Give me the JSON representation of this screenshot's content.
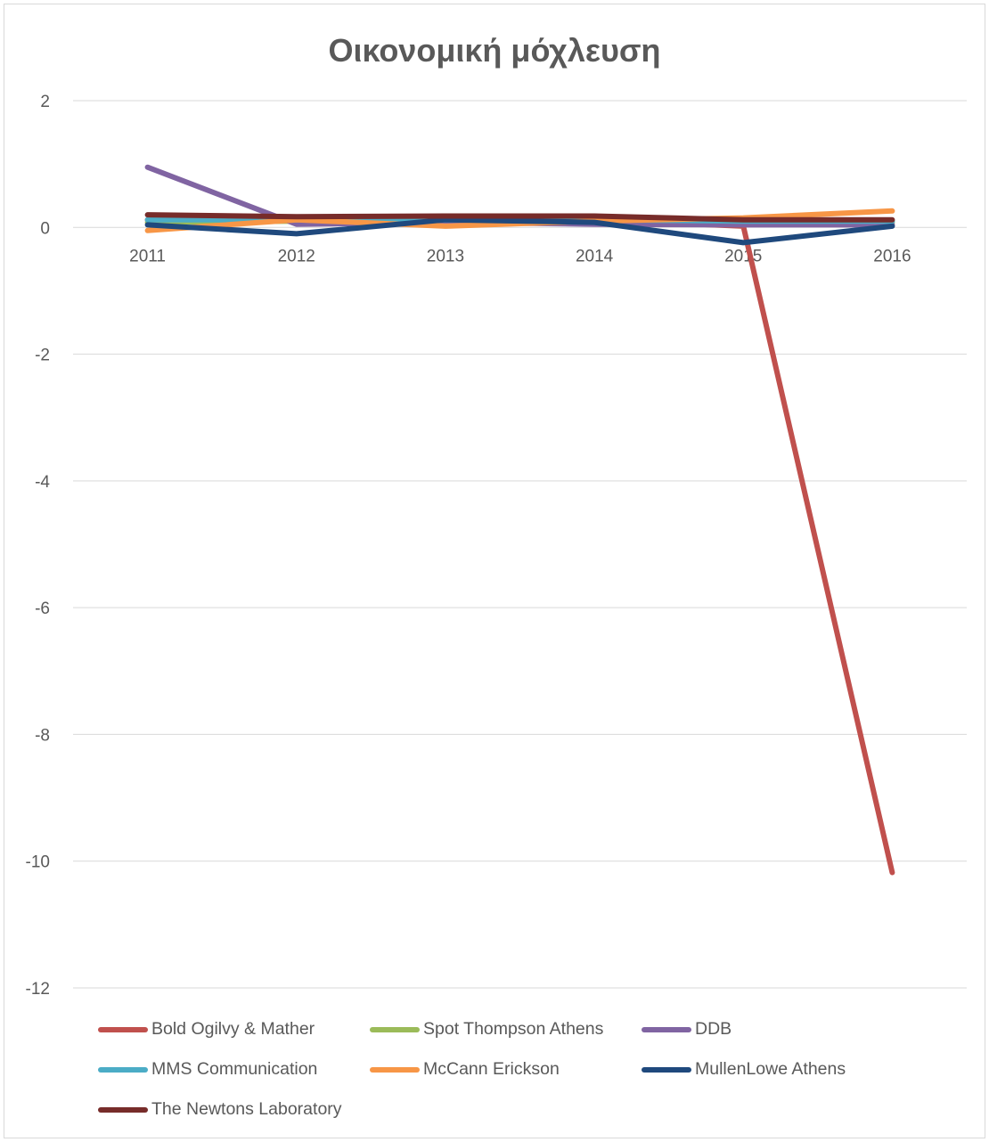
{
  "chart_data": {
    "type": "line",
    "title": "Οικονομική μόχλευση",
    "categories": [
      "2011",
      "2012",
      "2013",
      "2014",
      "2015",
      "2016"
    ],
    "y_ticks": [
      "2",
      "0",
      "-2",
      "-4",
      "-6",
      "-8",
      "-10",
      "-12"
    ],
    "ylim": [
      -12,
      2
    ],
    "grid": true,
    "legend_position": "bottom",
    "series": [
      {
        "name": "Bold Ogilvy & Mather",
        "color": "#c0504d",
        "values": [
          0.12,
          0.12,
          0.12,
          0.12,
          0.02,
          -10.18
        ]
      },
      {
        "name": "Spot Thompson Athens",
        "color": "#9bbb59",
        "values": [
          0.08,
          0.1,
          0.1,
          0.1,
          0.08,
          0.08
        ]
      },
      {
        "name": "DDB",
        "color": "#8064a2",
        "values": [
          0.95,
          0.05,
          0.08,
          0.05,
          0.04,
          0.04
        ]
      },
      {
        "name": "MMS Communication",
        "color": "#4bacc6",
        "values": [
          0.12,
          0.12,
          0.12,
          0.12,
          0.1,
          0.1
        ]
      },
      {
        "name": "McCann Erickson",
        "color": "#f79646",
        "values": [
          -0.05,
          0.12,
          0.02,
          0.1,
          0.15,
          0.26
        ]
      },
      {
        "name": "MullenLowe Athens",
        "color": "#1f497d",
        "values": [
          0.04,
          -0.1,
          0.12,
          0.08,
          -0.24,
          0.02
        ]
      },
      {
        "name": "The Newtons Laboratory",
        "color": "#772c2a",
        "values": [
          0.2,
          0.17,
          0.18,
          0.18,
          0.12,
          0.12
        ]
      }
    ]
  }
}
